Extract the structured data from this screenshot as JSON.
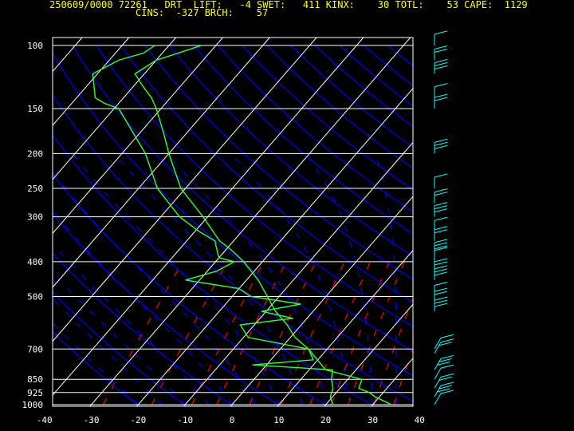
{
  "header": {
    "line1": "250609/0000 72261   DRT  LIFT:   -4 SWET:   411 KINX:    30 TOTL:    53 CAPE:  1129",
    "line2": "CINS:  -327 BRCH:    57"
  },
  "colors": {
    "background": "#000000",
    "text": "#ffffff",
    "header": "#ffff00",
    "isobar": "#ffffff",
    "isotherm": "#ffffff",
    "dry_adiabat": "#0000ff",
    "moist_adiabat": "#0000ff",
    "mixing_ratio": "#ff0000",
    "profiles": "#33ff33",
    "wind_barbs": "#00ffff"
  },
  "chart_data": {
    "type": "line",
    "title": "",
    "xlabel": "",
    "ylabel": "",
    "scale": "skew-t log-p",
    "pressure_levels": [
      "100",
      "150",
      "200",
      "250",
      "300",
      "400",
      "500",
      "700",
      "850",
      "925",
      "1000"
    ],
    "temperature_ticks": [
      "-40",
      "-30",
      "-20",
      "-10",
      "0",
      "10",
      "20",
      "30",
      "40"
    ],
    "xlim": [
      -40,
      40
    ],
    "ylim": [
      1000,
      100
    ],
    "grid": true,
    "series": [
      {
        "pressure_hpa": [
          1000,
          950,
          925,
          900,
          850,
          800,
          700,
          650,
          600,
          550,
          500,
          450,
          400,
          370,
          350,
          300,
          250,
          200,
          175,
          150,
          140,
          130,
          120,
          110,
          100
        ],
        "values": [
          34,
          29,
          27,
          24,
          23,
          13.5,
          6,
          1,
          -3,
          -8,
          -12.5,
          -17.5,
          -24,
          -29,
          -33,
          -41,
          -51,
          -60,
          -65,
          -71,
          -74,
          -78,
          -82,
          -80,
          -73
        ]
      },
      {
        "pressure_hpa": [
          1000,
          975,
          950,
          925,
          900,
          850,
          800,
          775,
          750,
          700,
          650,
          600,
          575,
          550,
          525,
          500,
          475,
          450,
          425,
          400,
          390,
          380,
          350,
          330,
          300,
          250,
          200,
          150,
          145,
          140,
          120,
          110,
          105,
          100
        ],
        "values": [
          21.5,
          20.5,
          19.5,
          19,
          18.5,
          16.5,
          15,
          -3,
          9,
          6,
          -9,
          -13,
          -3,
          -11,
          -4,
          -16,
          -20,
          -33,
          -28,
          -26,
          -30,
          -31,
          -34,
          -39,
          -46,
          -56,
          -65,
          -79,
          -83,
          -86,
          -91,
          -88,
          -84,
          -83
        ]
      }
    ]
  }
}
